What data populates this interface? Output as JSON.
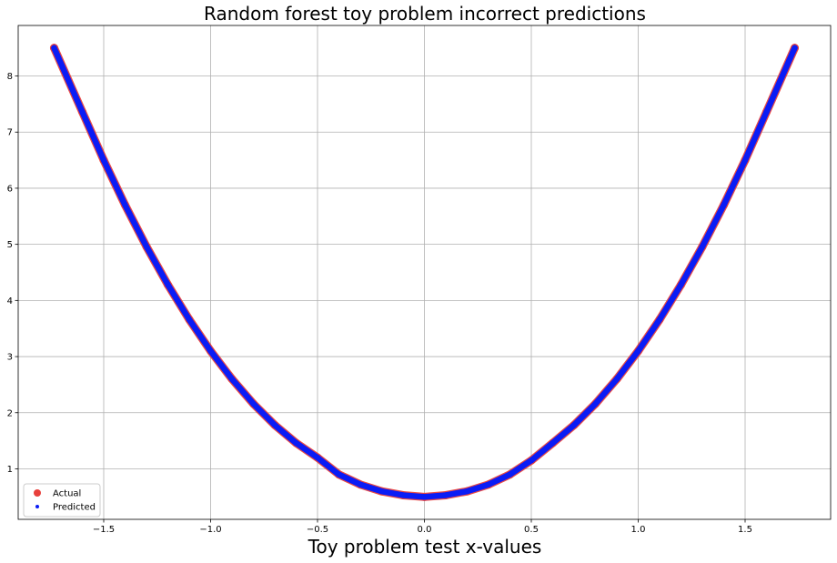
{
  "chart_data": {
    "type": "scatter",
    "title": "Random forest toy problem incorrect predictions",
    "xlabel": "Toy problem test x-values",
    "ylabel": "",
    "xlim": [
      -1.9,
      1.9
    ],
    "ylim": [
      0.1,
      8.9
    ],
    "xticks": [
      -1.5,
      -1.0,
      -0.5,
      0.0,
      0.5,
      1.0,
      1.5
    ],
    "xtick_labels": [
      "−1.5",
      "−1.0",
      "−0.5",
      "0.0",
      "0.5",
      "1.0",
      "1.5"
    ],
    "yticks": [
      1,
      2,
      3,
      4,
      5,
      6,
      7,
      8
    ],
    "ytick_labels": [
      "1",
      "2",
      "3",
      "4",
      "5",
      "6",
      "7",
      "8"
    ],
    "grid": true,
    "legend_position": "lower-left",
    "series": [
      {
        "name": "Actual",
        "color": "#e8403c",
        "marker": "circle-large",
        "x": [
          -1.732,
          -1.6,
          -1.5,
          -1.4,
          -1.3,
          -1.2,
          -1.1,
          -1.0,
          -0.9,
          -0.8,
          -0.7,
          -0.6,
          -0.5,
          -0.4,
          -0.3,
          -0.2,
          -0.1,
          0.0,
          0.1,
          0.2,
          0.3,
          0.4,
          0.5,
          0.6,
          0.7,
          0.8,
          0.9,
          1.0,
          1.1,
          1.2,
          1.3,
          1.4,
          1.5,
          1.6,
          1.732
        ],
        "y": [
          8.5,
          7.36,
          6.5,
          5.7,
          4.96,
          4.28,
          3.66,
          3.1,
          2.6,
          2.16,
          1.78,
          1.46,
          1.2,
          0.9,
          0.72,
          0.6,
          0.53,
          0.5,
          0.53,
          0.6,
          0.72,
          0.9,
          1.15,
          1.46,
          1.78,
          2.16,
          2.6,
          3.1,
          3.66,
          4.28,
          4.96,
          5.7,
          6.5,
          7.36,
          8.5
        ]
      },
      {
        "name": "Predicted",
        "color": "#0a1cf5",
        "marker": "circle-small",
        "x": [
          -1.732,
          -1.6,
          -1.5,
          -1.4,
          -1.3,
          -1.2,
          -1.1,
          -1.0,
          -0.9,
          -0.8,
          -0.7,
          -0.6,
          -0.5,
          -0.4,
          -0.3,
          -0.2,
          -0.1,
          0.0,
          0.1,
          0.2,
          0.3,
          0.4,
          0.5,
          0.6,
          0.7,
          0.8,
          0.9,
          1.0,
          1.1,
          1.2,
          1.3,
          1.4,
          1.5,
          1.6,
          1.732
        ],
        "y": [
          8.5,
          7.36,
          6.5,
          5.7,
          4.96,
          4.28,
          3.66,
          3.1,
          2.6,
          2.16,
          1.78,
          1.46,
          1.2,
          0.9,
          0.72,
          0.6,
          0.53,
          0.5,
          0.53,
          0.6,
          0.72,
          0.9,
          1.15,
          1.46,
          1.78,
          2.16,
          2.6,
          3.1,
          3.66,
          4.28,
          4.96,
          5.7,
          6.5,
          7.36,
          8.5
        ]
      }
    ]
  }
}
